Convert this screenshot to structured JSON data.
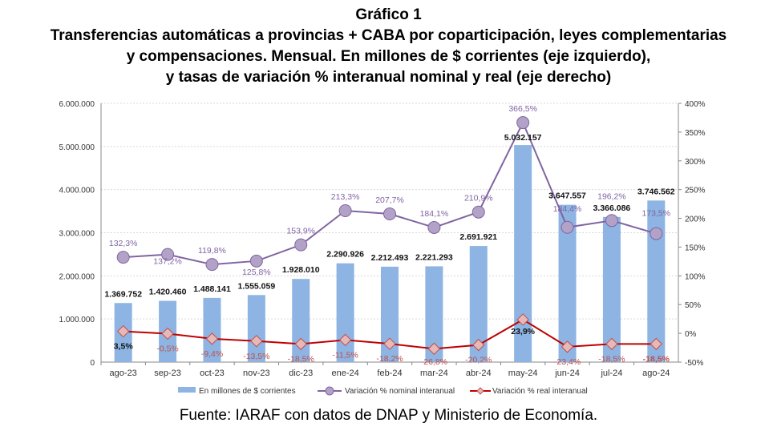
{
  "title_lines": [
    "Gráfico 1",
    "Transferencias automáticas a provincias + CABA por coparticipación, leyes complementarias",
    "y compensaciones. Mensual. En millones de $ corrientes (eje izquierdo),",
    "y tasas de variación % interanual nominal y real (eje derecho)"
  ],
  "source": "Fuente: IARAF con datos de DNAP y Ministerio de Economía.",
  "chart_data": {
    "type": "bar+line",
    "categories": [
      "ago-23",
      "sep-23",
      "oct-23",
      "nov-23",
      "dic-23",
      "ene-24",
      "feb-24",
      "mar-24",
      "abr-24",
      "may-24",
      "jun-24",
      "jul-24",
      "ago-24"
    ],
    "series": [
      {
        "name": "En millones de $ corrientes",
        "type": "bar",
        "axis": "left",
        "color": "#8db4e2",
        "values": [
          1369752,
          1420460,
          1488141,
          1555059,
          1928010,
          2290926,
          2212493,
          2221293,
          2691921,
          5032157,
          3647557,
          3366086,
          3746562
        ],
        "labels": [
          "1.369.752",
          "1.420.460",
          "1.488.141",
          "1.555.059",
          "1.928.010",
          "2.290.926",
          "2.212.493",
          "2.221.293",
          "2.691.921",
          "5.032.157",
          "3.647.557",
          "3.366.086",
          "3.746.562"
        ]
      },
      {
        "name": "Variación % nominal interanual",
        "type": "line",
        "axis": "right",
        "color": "#8064a2",
        "values": [
          132.3,
          137.2,
          119.8,
          125.8,
          153.9,
          213.3,
          207.7,
          184.1,
          210.9,
          366.5,
          184.4,
          196.2,
          173.5
        ],
        "labels": [
          "132,3%",
          "137,2%",
          "119,8%",
          "125,8%",
          "153,9%",
          "213,3%",
          "207,7%",
          "184,1%",
          "210,9%",
          "366,5%",
          "184,4%",
          "196,2%",
          "173,5%"
        ]
      },
      {
        "name": "Variación % real interanual",
        "type": "line",
        "axis": "right",
        "color": "#c00000",
        "values": [
          3.5,
          -0.5,
          -9.4,
          -13.5,
          -18.5,
          -11.5,
          -18.2,
          -26.8,
          -20.2,
          23.9,
          -23.4,
          -18.5,
          -18.5
        ],
        "labels": [
          "3,5%",
          "-0,5%",
          "-9,4%",
          "-13,5%",
          "-18,5%",
          "-11,5%",
          "-18,2%",
          "-26,8%",
          "-20,2%",
          "23,9%",
          "-23,4%",
          "-18,5%",
          "-18,5%"
        ]
      }
    ],
    "left_axis": {
      "ylim": [
        0,
        6000000
      ],
      "ticks": [
        "0",
        "1.000.000",
        "2.000.000",
        "3.000.000",
        "4.000.000",
        "5.000.000",
        "6.000.000"
      ]
    },
    "right_axis": {
      "ylim": [
        -50,
        400
      ],
      "ticks": [
        "-50%",
        "0%",
        "50%",
        "100%",
        "150%",
        "200%",
        "250%",
        "300%",
        "350%",
        "400%"
      ]
    },
    "grid": true,
    "legend": "bottom"
  }
}
